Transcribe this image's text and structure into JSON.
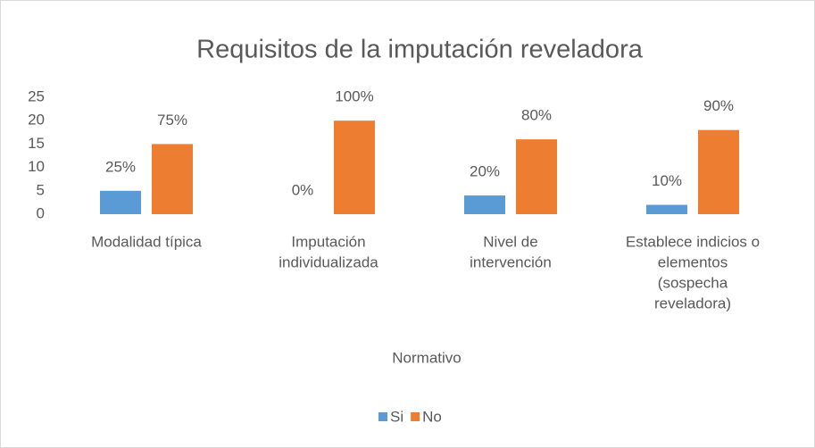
{
  "chart_data": {
    "type": "bar",
    "title": "Requisitos de la imputación reveladora",
    "categories": [
      [
        "Modalidad típica"
      ],
      [
        "Imputación",
        "individualizada"
      ],
      [
        "Nivel de",
        "intervención"
      ],
      [
        "Establece indicios o",
        "elementos",
        "(sospecha",
        "reveladora)"
      ]
    ],
    "xlabel": "Normativo",
    "series": [
      {
        "name": "Si",
        "color": "#5b9bd5",
        "values": [
          5,
          0,
          4,
          2
        ],
        "value_labels": [
          "25%",
          "0%",
          "20%",
          "10%"
        ]
      },
      {
        "name": "No",
        "color": "#ed7d31",
        "values": [
          15,
          20,
          16,
          18
        ],
        "value_labels": [
          "75%",
          "100%",
          "80%",
          "90%"
        ]
      }
    ],
    "ylim": [
      0,
      25
    ],
    "yticks": [
      0,
      5,
      10,
      15,
      20,
      25
    ],
    "grid": false,
    "legend": "bottom"
  }
}
